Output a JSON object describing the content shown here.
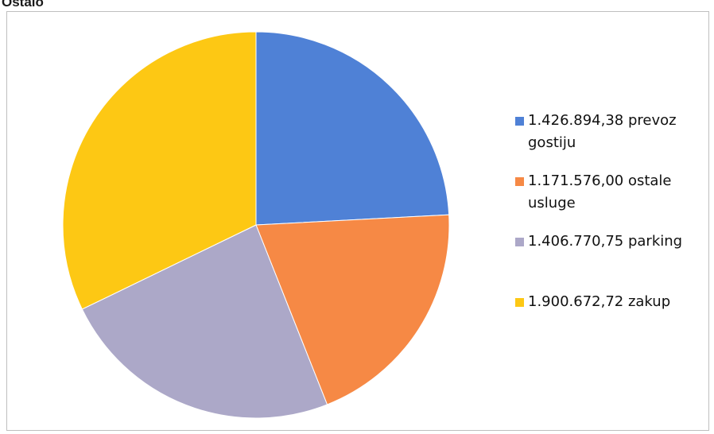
{
  "header": {
    "title": "Ostalo"
  },
  "chart_data": {
    "type": "pie",
    "start_angle_deg": 0,
    "direction": "clockwise",
    "slices": [
      {
        "label": "1.426.894,38 prevoz gostiju",
        "value": 1426894.38,
        "color": "#4f81d6"
      },
      {
        "label": "1.171.576,00 ostale usluge",
        "value": 1171576.0,
        "color": "#f68945"
      },
      {
        "label": "1.406.770,75 parking",
        "value": 1406770.75,
        "color": "#aca8c8"
      },
      {
        "label": "1.900.672,72 zakup",
        "value": 1900672.72,
        "color": "#fdc814"
      }
    ],
    "legend_position": "right"
  }
}
